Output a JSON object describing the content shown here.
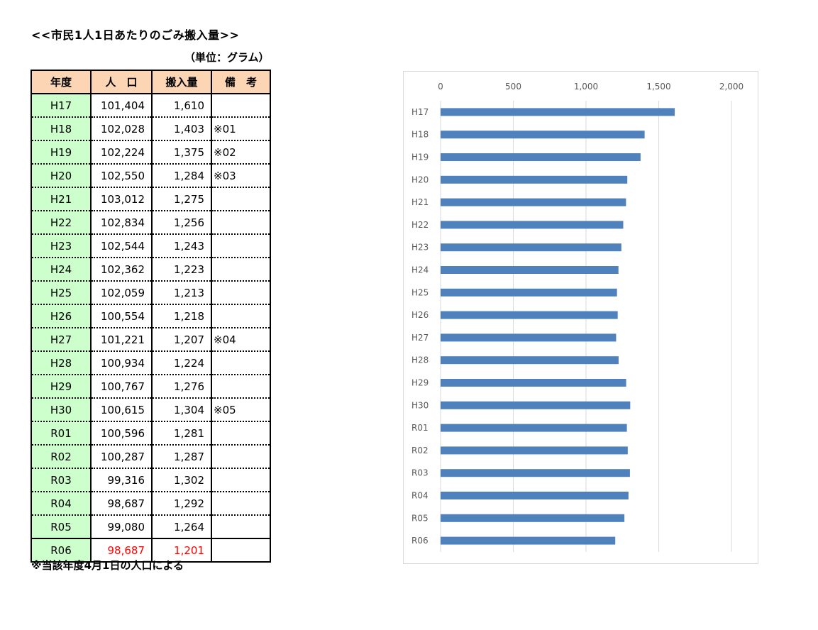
{
  "title": "<<市民1人1日あたりのごみ搬入量>>",
  "unit": "（単位：グラム）",
  "note": "※当該年度4月1日の人口による",
  "table": {
    "headers": [
      "年度",
      "人　口",
      "搬入量",
      "備　考"
    ],
    "rows": [
      {
        "year": "H17",
        "population": "101,404",
        "amount": "1,610",
        "remark": ""
      },
      {
        "year": "H18",
        "population": "102,028",
        "amount": "1,403",
        "remark": "※01"
      },
      {
        "year": "H19",
        "population": "102,224",
        "amount": "1,375",
        "remark": "※02"
      },
      {
        "year": "H20",
        "population": "102,550",
        "amount": "1,284",
        "remark": "※03"
      },
      {
        "year": "H21",
        "population": "103,012",
        "amount": "1,275",
        "remark": ""
      },
      {
        "year": "H22",
        "population": "102,834",
        "amount": "1,256",
        "remark": ""
      },
      {
        "year": "H23",
        "population": "102,544",
        "amount": "1,243",
        "remark": ""
      },
      {
        "year": "H24",
        "population": "102,362",
        "amount": "1,223",
        "remark": ""
      },
      {
        "year": "H25",
        "population": "102,059",
        "amount": "1,213",
        "remark": ""
      },
      {
        "year": "H26",
        "population": "100,554",
        "amount": "1,218",
        "remark": ""
      },
      {
        "year": "H27",
        "population": "101,221",
        "amount": "1,207",
        "remark": "※04"
      },
      {
        "year": "H28",
        "population": "100,934",
        "amount": "1,224",
        "remark": ""
      },
      {
        "year": "H29",
        "population": "100,767",
        "amount": "1,276",
        "remark": ""
      },
      {
        "year": "H30",
        "population": "100,615",
        "amount": "1,304",
        "remark": "※05"
      },
      {
        "year": "R01",
        "population": "100,596",
        "amount": "1,281",
        "remark": ""
      },
      {
        "year": "R02",
        "population": "100,287",
        "amount": "1,287",
        "remark": ""
      },
      {
        "year": "R03",
        "population": "99,316",
        "amount": "1,302",
        "remark": ""
      },
      {
        "year": "R04",
        "population": "98,687",
        "amount": "1,292",
        "remark": ""
      },
      {
        "year": "R05",
        "population": "99,080",
        "amount": "1,264",
        "remark": ""
      },
      {
        "year": "R06",
        "population": "98,687",
        "amount": "1,201",
        "remark": ""
      }
    ]
  },
  "chart_data": {
    "type": "bar",
    "orientation": "horizontal",
    "categories": [
      "H17",
      "H18",
      "H19",
      "H20",
      "H21",
      "H22",
      "H23",
      "H24",
      "H25",
      "H26",
      "H27",
      "H28",
      "H29",
      "H30",
      "R01",
      "R02",
      "R03",
      "R04",
      "R05",
      "R06"
    ],
    "values": [
      1610,
      1403,
      1375,
      1284,
      1275,
      1256,
      1243,
      1223,
      1213,
      1218,
      1207,
      1224,
      1276,
      1304,
      1281,
      1287,
      1302,
      1292,
      1264,
      1201
    ],
    "xlim": [
      0,
      2000
    ],
    "xticks": [
      0,
      500,
      1000,
      1500,
      2000
    ],
    "xtick_labels": [
      "0",
      "500",
      "1,000",
      "1,500",
      "2,000"
    ],
    "axis_position": "top",
    "grid": true,
    "bar_color": "#4f81bd",
    "grid_color": "#d9d9d9",
    "title": "",
    "xlabel": "",
    "ylabel": ""
  },
  "colors": {
    "header_bg": "#fcd5b4",
    "year_bg": "#ccffcc",
    "highlight_text": "#ff0000"
  }
}
